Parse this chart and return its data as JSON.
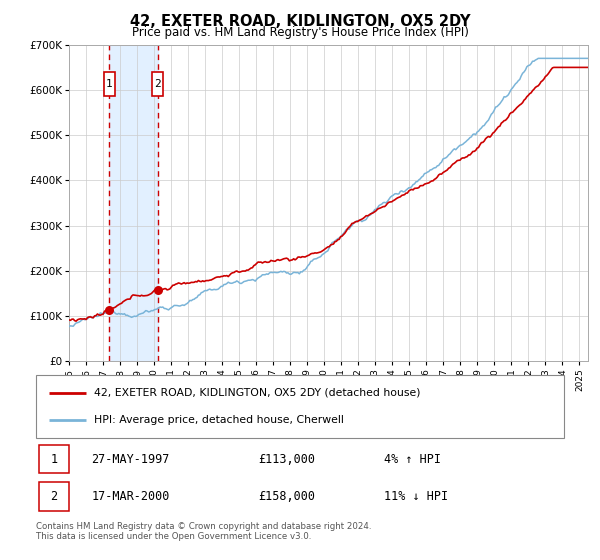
{
  "title": "42, EXETER ROAD, KIDLINGTON, OX5 2DY",
  "subtitle": "Price paid vs. HM Land Registry's House Price Index (HPI)",
  "legend_line1": "42, EXETER ROAD, KIDLINGTON, OX5 2DY (detached house)",
  "legend_line2": "HPI: Average price, detached house, Cherwell",
  "transaction1_date": "27-MAY-1997",
  "transaction1_price": 113000,
  "transaction1_hpi": "4% ↑ HPI",
  "transaction1_year": 1997.38,
  "transaction2_date": "17-MAR-2000",
  "transaction2_price": 158000,
  "transaction2_hpi": "11% ↓ HPI",
  "transaction2_year": 2000.21,
  "xmin": 1995.0,
  "xmax": 2025.5,
  "ymin": 0,
  "ymax": 700000,
  "hpi_color": "#7ab4d8",
  "price_color": "#cc0000",
  "dashed_color": "#cc0000",
  "shade_color": "#ddeeff",
  "box_color": "#cc0000",
  "footer": "Contains HM Land Registry data © Crown copyright and database right 2024.\nThis data is licensed under the Open Government Licence v3.0.",
  "background_color": "#ffffff",
  "grid_color": "#cccccc"
}
